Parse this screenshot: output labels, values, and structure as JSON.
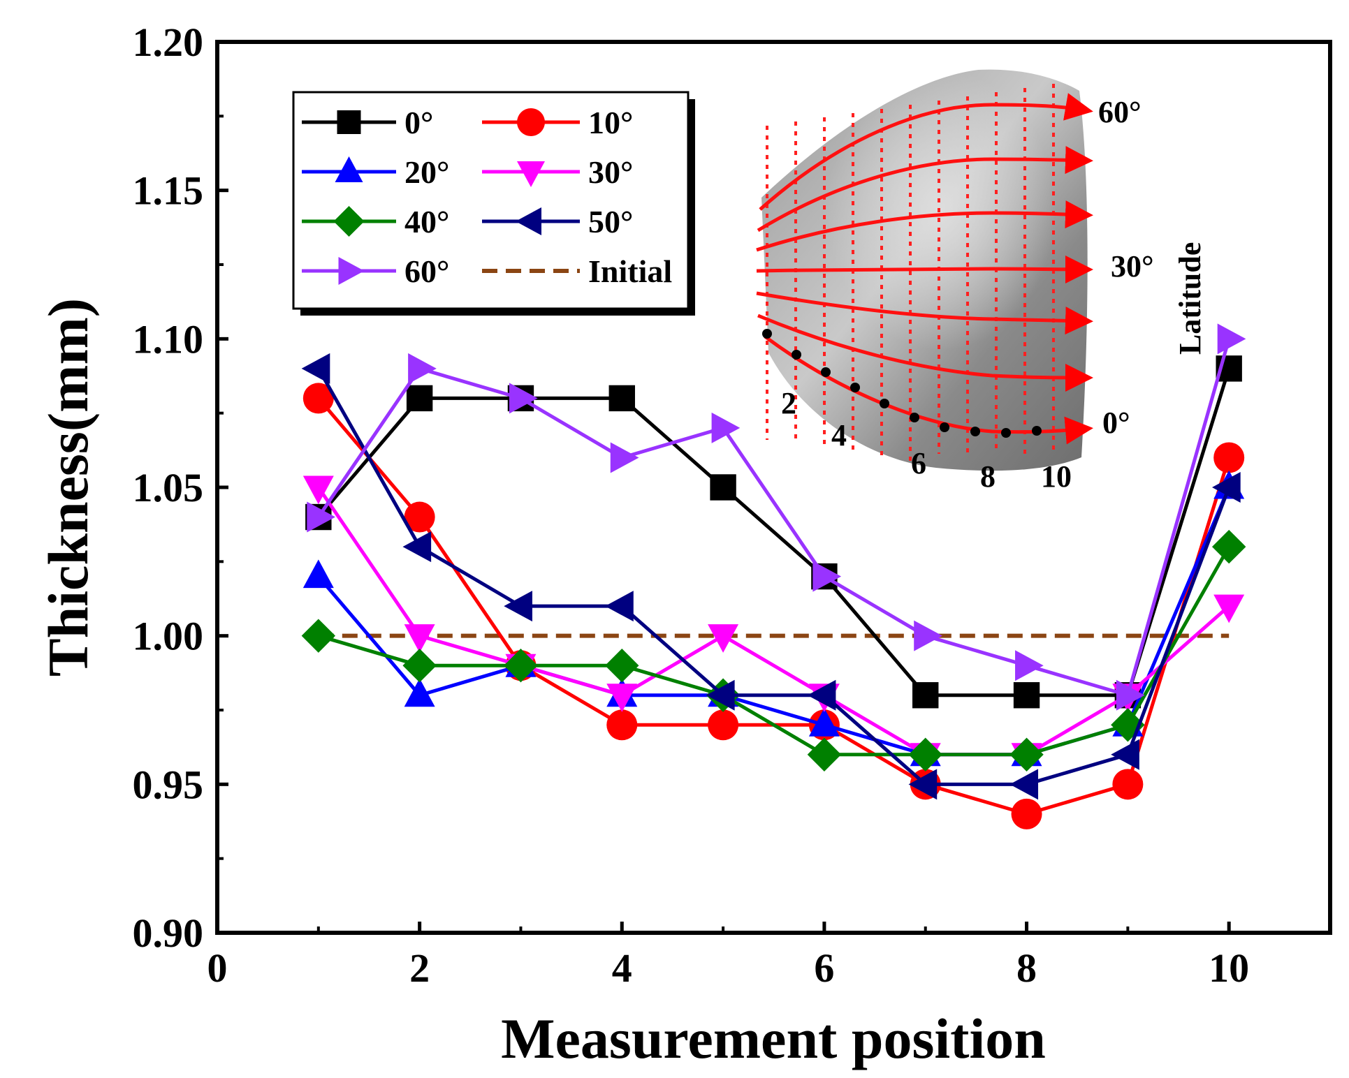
{
  "chart_data": {
    "type": "line",
    "title": "",
    "xlabel": "Measurement position",
    "ylabel": "Thickness(mm)",
    "xlim": [
      0,
      11
    ],
    "ylim": [
      0.9,
      1.2
    ],
    "xticks": [
      0,
      2,
      4,
      6,
      8,
      10
    ],
    "xtick_labels": [
      "0",
      "2",
      "4",
      "6",
      "8",
      "10"
    ],
    "yticks": [
      0.9,
      0.95,
      1.0,
      1.05,
      1.1,
      1.15,
      1.2
    ],
    "ytick_labels": [
      "0.90",
      "0.95",
      "1.00",
      "1.05",
      "1.10",
      "1.15",
      "1.20"
    ],
    "grid": false,
    "legend_position": "top-left",
    "x": [
      1,
      2,
      3,
      4,
      5,
      6,
      7,
      8,
      9,
      10
    ],
    "series": [
      {
        "name": "0°",
        "color": "#000000",
        "marker": "square",
        "values": [
          1.04,
          1.08,
          1.08,
          1.08,
          1.05,
          1.02,
          0.98,
          0.98,
          0.98,
          1.09
        ]
      },
      {
        "name": "10°",
        "color": "#ff0000",
        "marker": "circle",
        "values": [
          1.08,
          1.04,
          0.99,
          0.97,
          0.97,
          0.97,
          0.95,
          0.94,
          0.95,
          1.06
        ]
      },
      {
        "name": "20°",
        "color": "#0000ff",
        "marker": "triangle-up",
        "values": [
          1.02,
          0.98,
          0.99,
          0.98,
          0.98,
          0.97,
          0.96,
          0.96,
          0.97,
          1.05
        ]
      },
      {
        "name": "30°",
        "color": "#ff00ff",
        "marker": "triangle-down",
        "values": [
          1.05,
          1.0,
          0.99,
          0.98,
          1.0,
          0.98,
          0.96,
          0.96,
          0.98,
          1.01
        ]
      },
      {
        "name": "40°",
        "color": "#008000",
        "marker": "diamond",
        "values": [
          1.0,
          0.99,
          0.99,
          0.99,
          0.98,
          0.96,
          0.96,
          0.96,
          0.97,
          1.03
        ]
      },
      {
        "name": "50°",
        "color": "#000080",
        "marker": "triangle-left",
        "values": [
          1.09,
          1.03,
          1.01,
          1.01,
          0.98,
          0.98,
          0.95,
          0.95,
          0.96,
          1.05
        ]
      },
      {
        "name": "60°",
        "color": "#9933ff",
        "marker": "triangle-right",
        "values": [
          1.04,
          1.09,
          1.08,
          1.06,
          1.07,
          1.02,
          1.0,
          0.99,
          0.98,
          1.1
        ]
      },
      {
        "name": "Initial",
        "color": "#8b4513",
        "marker": "none",
        "dashed": true,
        "values": [
          1.0,
          1.0,
          1.0,
          1.0,
          1.0,
          1.0,
          1.0,
          1.0,
          1.0,
          1.0
        ]
      }
    ],
    "inset": {
      "latitude_labels": [
        "60°",
        "30°",
        "0°"
      ],
      "axis_label": "Latitude",
      "position_labels": [
        "2",
        "4",
        "6",
        "8",
        "10"
      ]
    }
  }
}
